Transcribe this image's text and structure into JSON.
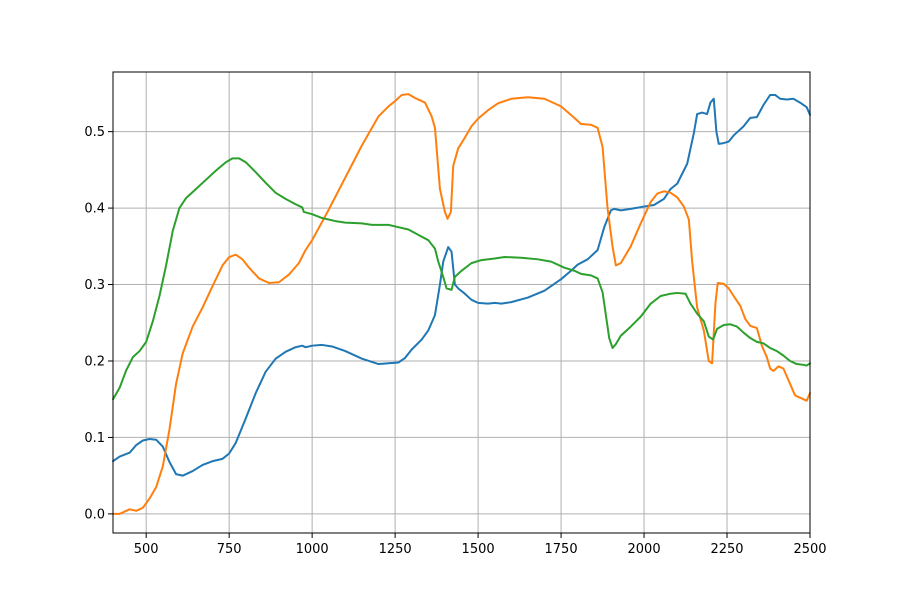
{
  "chart_data": {
    "type": "line",
    "title": "",
    "xlabel": "",
    "ylabel": "",
    "xlim": [
      400,
      2500
    ],
    "ylim": [
      -0.025,
      0.578
    ],
    "xticks": [
      500,
      750,
      1000,
      1250,
      1500,
      1750,
      2000,
      2250,
      2500
    ],
    "yticks": [
      0.0,
      0.1,
      0.2,
      0.3,
      0.4,
      0.5
    ],
    "xtick_labels": [
      "500",
      "750",
      "1000",
      "1250",
      "1500",
      "1750",
      "2000",
      "2250",
      "2500"
    ],
    "ytick_labels": [
      "0.0",
      "0.1",
      "0.2",
      "0.3",
      "0.4",
      "0.5"
    ],
    "grid": true,
    "legend": "none",
    "series": [
      {
        "color": "#1f77b4",
        "points": [
          [
            400,
            0.069
          ],
          [
            420,
            0.075
          ],
          [
            450,
            0.08
          ],
          [
            470,
            0.09
          ],
          [
            490,
            0.096
          ],
          [
            510,
            0.098
          ],
          [
            530,
            0.097
          ],
          [
            550,
            0.088
          ],
          [
            570,
            0.068
          ],
          [
            590,
            0.052
          ],
          [
            610,
            0.05
          ],
          [
            640,
            0.056
          ],
          [
            670,
            0.064
          ],
          [
            700,
            0.069
          ],
          [
            730,
            0.072
          ],
          [
            750,
            0.079
          ],
          [
            770,
            0.093
          ],
          [
            800,
            0.125
          ],
          [
            830,
            0.158
          ],
          [
            860,
            0.186
          ],
          [
            890,
            0.203
          ],
          [
            920,
            0.212
          ],
          [
            950,
            0.218
          ],
          [
            970,
            0.22
          ],
          [
            980,
            0.218
          ],
          [
            1000,
            0.22
          ],
          [
            1030,
            0.221
          ],
          [
            1060,
            0.219
          ],
          [
            1100,
            0.213
          ],
          [
            1150,
            0.203
          ],
          [
            1200,
            0.196
          ],
          [
            1230,
            0.197
          ],
          [
            1260,
            0.198
          ],
          [
            1280,
            0.204
          ],
          [
            1300,
            0.215
          ],
          [
            1330,
            0.228
          ],
          [
            1350,
            0.24
          ],
          [
            1370,
            0.26
          ],
          [
            1385,
            0.3
          ],
          [
            1395,
            0.33
          ],
          [
            1410,
            0.349
          ],
          [
            1420,
            0.343
          ],
          [
            1430,
            0.3
          ],
          [
            1440,
            0.295
          ],
          [
            1460,
            0.288
          ],
          [
            1480,
            0.28
          ],
          [
            1500,
            0.276
          ],
          [
            1530,
            0.275
          ],
          [
            1550,
            0.276
          ],
          [
            1570,
            0.275
          ],
          [
            1600,
            0.277
          ],
          [
            1650,
            0.283
          ],
          [
            1700,
            0.292
          ],
          [
            1750,
            0.307
          ],
          [
            1780,
            0.318
          ],
          [
            1800,
            0.326
          ],
          [
            1830,
            0.333
          ],
          [
            1860,
            0.345
          ],
          [
            1880,
            0.375
          ],
          [
            1900,
            0.397
          ],
          [
            1910,
            0.399
          ],
          [
            1930,
            0.397
          ],
          [
            1960,
            0.399
          ],
          [
            2000,
            0.402
          ],
          [
            2030,
            0.404
          ],
          [
            2060,
            0.412
          ],
          [
            2080,
            0.425
          ],
          [
            2100,
            0.432
          ],
          [
            2130,
            0.458
          ],
          [
            2150,
            0.498
          ],
          [
            2160,
            0.523
          ],
          [
            2175,
            0.525
          ],
          [
            2190,
            0.523
          ],
          [
            2200,
            0.538
          ],
          [
            2210,
            0.543
          ],
          [
            2218,
            0.5
          ],
          [
            2225,
            0.484
          ],
          [
            2240,
            0.485
          ],
          [
            2255,
            0.487
          ],
          [
            2270,
            0.495
          ],
          [
            2300,
            0.507
          ],
          [
            2320,
            0.518
          ],
          [
            2340,
            0.519
          ],
          [
            2360,
            0.535
          ],
          [
            2380,
            0.548
          ],
          [
            2395,
            0.548
          ],
          [
            2410,
            0.543
          ],
          [
            2430,
            0.542
          ],
          [
            2450,
            0.543
          ],
          [
            2470,
            0.538
          ],
          [
            2490,
            0.532
          ],
          [
            2500,
            0.522
          ]
        ]
      },
      {
        "color": "#ff7f0e",
        "points": [
          [
            400,
            0.0
          ],
          [
            420,
            0.0
          ],
          [
            450,
            0.006
          ],
          [
            470,
            0.004
          ],
          [
            490,
            0.008
          ],
          [
            510,
            0.02
          ],
          [
            530,
            0.035
          ],
          [
            550,
            0.062
          ],
          [
            570,
            0.11
          ],
          [
            590,
            0.17
          ],
          [
            610,
            0.21
          ],
          [
            640,
            0.245
          ],
          [
            670,
            0.27
          ],
          [
            700,
            0.298
          ],
          [
            730,
            0.325
          ],
          [
            750,
            0.336
          ],
          [
            770,
            0.339
          ],
          [
            790,
            0.333
          ],
          [
            810,
            0.322
          ],
          [
            840,
            0.308
          ],
          [
            870,
            0.302
          ],
          [
            900,
            0.303
          ],
          [
            930,
            0.313
          ],
          [
            960,
            0.328
          ],
          [
            980,
            0.345
          ],
          [
            1000,
            0.358
          ],
          [
            1050,
            0.398
          ],
          [
            1100,
            0.44
          ],
          [
            1150,
            0.482
          ],
          [
            1200,
            0.52
          ],
          [
            1230,
            0.533
          ],
          [
            1250,
            0.54
          ],
          [
            1270,
            0.548
          ],
          [
            1290,
            0.549
          ],
          [
            1310,
            0.544
          ],
          [
            1340,
            0.538
          ],
          [
            1360,
            0.52
          ],
          [
            1370,
            0.505
          ],
          [
            1385,
            0.425
          ],
          [
            1400,
            0.395
          ],
          [
            1408,
            0.386
          ],
          [
            1418,
            0.395
          ],
          [
            1425,
            0.455
          ],
          [
            1440,
            0.478
          ],
          [
            1460,
            0.492
          ],
          [
            1480,
            0.507
          ],
          [
            1500,
            0.517
          ],
          [
            1530,
            0.528
          ],
          [
            1560,
            0.537
          ],
          [
            1600,
            0.543
          ],
          [
            1650,
            0.545
          ],
          [
            1700,
            0.543
          ],
          [
            1750,
            0.533
          ],
          [
            1790,
            0.518
          ],
          [
            1810,
            0.51
          ],
          [
            1840,
            0.509
          ],
          [
            1860,
            0.505
          ],
          [
            1875,
            0.48
          ],
          [
            1890,
            0.4
          ],
          [
            1905,
            0.35
          ],
          [
            1915,
            0.325
          ],
          [
            1930,
            0.328
          ],
          [
            1960,
            0.35
          ],
          [
            1990,
            0.38
          ],
          [
            2020,
            0.408
          ],
          [
            2040,
            0.419
          ],
          [
            2060,
            0.422
          ],
          [
            2080,
            0.42
          ],
          [
            2100,
            0.414
          ],
          [
            2120,
            0.402
          ],
          [
            2135,
            0.385
          ],
          [
            2145,
            0.33
          ],
          [
            2160,
            0.27
          ],
          [
            2180,
            0.24
          ],
          [
            2195,
            0.2
          ],
          [
            2205,
            0.197
          ],
          [
            2215,
            0.275
          ],
          [
            2222,
            0.302
          ],
          [
            2240,
            0.301
          ],
          [
            2255,
            0.295
          ],
          [
            2270,
            0.285
          ],
          [
            2290,
            0.272
          ],
          [
            2305,
            0.255
          ],
          [
            2320,
            0.246
          ],
          [
            2340,
            0.243
          ],
          [
            2355,
            0.22
          ],
          [
            2370,
            0.205
          ],
          [
            2380,
            0.19
          ],
          [
            2390,
            0.187
          ],
          [
            2405,
            0.193
          ],
          [
            2420,
            0.19
          ],
          [
            2440,
            0.17
          ],
          [
            2455,
            0.155
          ],
          [
            2470,
            0.152
          ],
          [
            2480,
            0.15
          ],
          [
            2490,
            0.148
          ],
          [
            2500,
            0.158
          ]
        ]
      },
      {
        "color": "#2ca02c",
        "points": [
          [
            400,
            0.15
          ],
          [
            420,
            0.165
          ],
          [
            440,
            0.188
          ],
          [
            460,
            0.205
          ],
          [
            480,
            0.213
          ],
          [
            500,
            0.225
          ],
          [
            520,
            0.252
          ],
          [
            540,
            0.285
          ],
          [
            560,
            0.325
          ],
          [
            580,
            0.37
          ],
          [
            600,
            0.4
          ],
          [
            620,
            0.413
          ],
          [
            650,
            0.425
          ],
          [
            680,
            0.437
          ],
          [
            710,
            0.449
          ],
          [
            740,
            0.46
          ],
          [
            760,
            0.465
          ],
          [
            780,
            0.465
          ],
          [
            800,
            0.46
          ],
          [
            830,
            0.447
          ],
          [
            860,
            0.433
          ],
          [
            890,
            0.42
          ],
          [
            920,
            0.412
          ],
          [
            950,
            0.405
          ],
          [
            970,
            0.401
          ],
          [
            975,
            0.395
          ],
          [
            1000,
            0.392
          ],
          [
            1030,
            0.387
          ],
          [
            1070,
            0.383
          ],
          [
            1100,
            0.381
          ],
          [
            1150,
            0.38
          ],
          [
            1180,
            0.378
          ],
          [
            1230,
            0.378
          ],
          [
            1260,
            0.375
          ],
          [
            1290,
            0.372
          ],
          [
            1320,
            0.365
          ],
          [
            1350,
            0.358
          ],
          [
            1370,
            0.347
          ],
          [
            1380,
            0.33
          ],
          [
            1395,
            0.31
          ],
          [
            1405,
            0.295
          ],
          [
            1420,
            0.293
          ],
          [
            1430,
            0.31
          ],
          [
            1450,
            0.318
          ],
          [
            1480,
            0.328
          ],
          [
            1510,
            0.332
          ],
          [
            1550,
            0.334
          ],
          [
            1580,
            0.336
          ],
          [
            1630,
            0.335
          ],
          [
            1680,
            0.333
          ],
          [
            1720,
            0.33
          ],
          [
            1760,
            0.322
          ],
          [
            1790,
            0.318
          ],
          [
            1810,
            0.314
          ],
          [
            1840,
            0.312
          ],
          [
            1860,
            0.308
          ],
          [
            1875,
            0.29
          ],
          [
            1885,
            0.26
          ],
          [
            1895,
            0.23
          ],
          [
            1905,
            0.217
          ],
          [
            1915,
            0.222
          ],
          [
            1930,
            0.233
          ],
          [
            1960,
            0.245
          ],
          [
            1990,
            0.258
          ],
          [
            2020,
            0.275
          ],
          [
            2050,
            0.285
          ],
          [
            2080,
            0.288
          ],
          [
            2100,
            0.289
          ],
          [
            2125,
            0.288
          ],
          [
            2140,
            0.275
          ],
          [
            2160,
            0.262
          ],
          [
            2180,
            0.252
          ],
          [
            2195,
            0.232
          ],
          [
            2208,
            0.228
          ],
          [
            2220,
            0.242
          ],
          [
            2240,
            0.247
          ],
          [
            2260,
            0.248
          ],
          [
            2280,
            0.245
          ],
          [
            2300,
            0.237
          ],
          [
            2320,
            0.23
          ],
          [
            2340,
            0.225
          ],
          [
            2360,
            0.223
          ],
          [
            2380,
            0.217
          ],
          [
            2400,
            0.213
          ],
          [
            2420,
            0.207
          ],
          [
            2440,
            0.2
          ],
          [
            2460,
            0.196
          ],
          [
            2480,
            0.195
          ],
          [
            2490,
            0.194
          ],
          [
            2500,
            0.197
          ]
        ]
      }
    ]
  }
}
